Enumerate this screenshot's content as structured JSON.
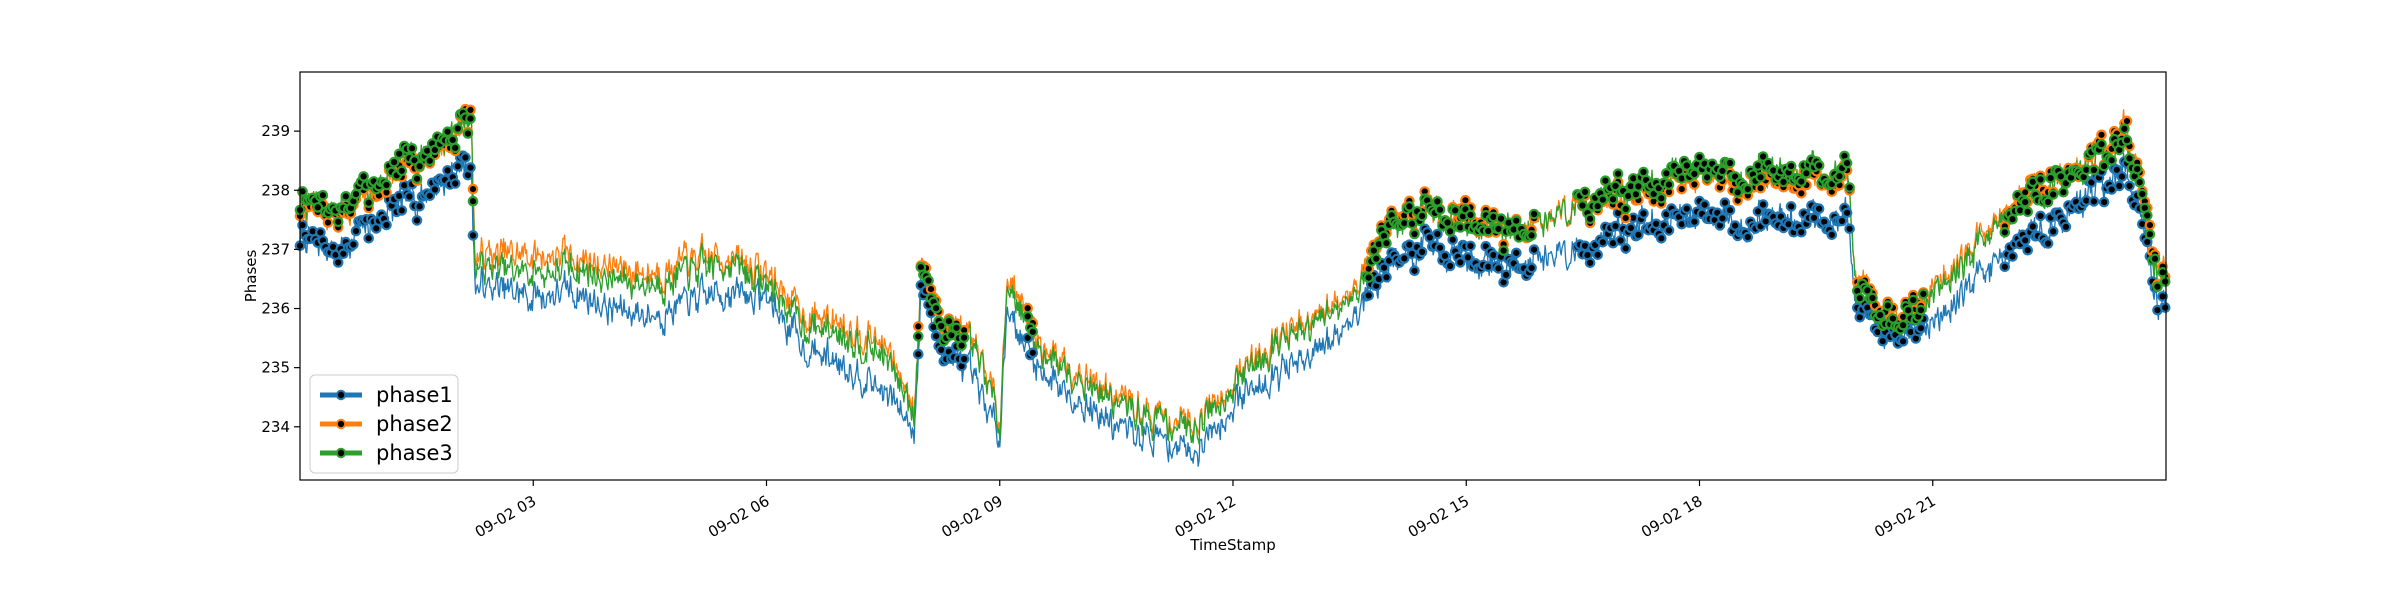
{
  "chart_data": {
    "type": "line",
    "title": "",
    "xlabel": "TimeStamp",
    "ylabel": "Phases",
    "xlim_hours": [
      0.0,
      24.0
    ],
    "ylim": [
      233.1,
      240.0
    ],
    "x_ticks": [
      {
        "hour": 3,
        "label": "09-02 03"
      },
      {
        "hour": 6,
        "label": "09-02 06"
      },
      {
        "hour": 9,
        "label": "09-02 09"
      },
      {
        "hour": 12,
        "label": "09-02 12"
      },
      {
        "hour": 15,
        "label": "09-02 15"
      },
      {
        "hour": 18,
        "label": "09-02 18"
      },
      {
        "hour": 21,
        "label": "09-02 21"
      }
    ],
    "y_ticks": [
      234,
      235,
      236,
      237,
      238,
      239
    ],
    "grid": false,
    "legend": "lower-left",
    "x_hours": [
      0.0,
      0.5,
      1.0,
      1.5,
      2.0,
      2.2,
      2.25,
      3.0,
      3.5,
      4.0,
      4.5,
      5.0,
      5.5,
      6.0,
      6.5,
      7.0,
      7.5,
      7.9,
      8.0,
      8.2,
      8.5,
      8.8,
      9.0,
      9.1,
      9.3,
      9.5,
      10.0,
      10.5,
      11.0,
      11.5,
      12.0,
      12.5,
      13.0,
      13.5,
      13.8,
      14.0,
      14.5,
      15.0,
      15.5,
      16.0,
      16.5,
      17.0,
      17.5,
      18.0,
      18.5,
      19.0,
      19.5,
      19.9,
      20.0,
      20.3,
      20.6,
      21.0,
      21.5,
      22.0,
      22.5,
      23.0,
      23.5,
      23.9,
      24.0
    ],
    "series": [
      {
        "name": "phase1",
        "color": "#1f77b4",
        "values": [
          237.2,
          237.0,
          237.5,
          237.9,
          238.3,
          238.5,
          236.4,
          236.2,
          236.3,
          236.0,
          235.9,
          236.1,
          236.3,
          236.2,
          235.3,
          235.1,
          234.6,
          234.0,
          236.5,
          235.4,
          235.1,
          234.4,
          233.9,
          236.1,
          235.4,
          235.0,
          234.5,
          234.0,
          233.8,
          233.6,
          234.4,
          234.9,
          235.1,
          235.8,
          236.4,
          236.8,
          237.0,
          236.9,
          236.7,
          236.9,
          237.0,
          237.3,
          237.5,
          237.6,
          237.4,
          237.6,
          237.5,
          237.6,
          236.0,
          235.7,
          235.5,
          235.8,
          236.4,
          237.0,
          237.4,
          237.9,
          238.4,
          236.1,
          236.1
        ]
      },
      {
        "name": "phase2",
        "color": "#ff7f0e",
        "values": [
          237.7,
          237.6,
          238.0,
          238.5,
          238.9,
          239.4,
          236.9,
          236.9,
          236.9,
          236.7,
          236.6,
          236.8,
          236.9,
          236.6,
          235.9,
          235.8,
          235.4,
          234.4,
          236.9,
          235.9,
          235.6,
          235.0,
          234.2,
          236.6,
          236.1,
          235.4,
          235.0,
          234.5,
          234.2,
          234.1,
          234.8,
          235.5,
          235.7,
          236.3,
          236.9,
          237.5,
          237.6,
          237.6,
          237.3,
          237.5,
          237.8,
          237.9,
          238.1,
          238.3,
          238.1,
          238.3,
          238.2,
          238.3,
          236.5,
          236.0,
          235.8,
          236.4,
          237.0,
          237.7,
          238.2,
          238.4,
          239.1,
          236.6,
          236.6
        ]
      },
      {
        "name": "phase3",
        "color": "#2ca02c",
        "values": [
          237.8,
          237.7,
          238.1,
          238.6,
          239.0,
          239.3,
          236.7,
          236.6,
          236.7,
          236.5,
          236.4,
          236.6,
          236.8,
          236.4,
          235.7,
          235.6,
          235.2,
          234.3,
          236.8,
          235.8,
          235.5,
          234.9,
          234.1,
          236.5,
          235.9,
          235.3,
          234.9,
          234.4,
          234.1,
          234.0,
          234.7,
          235.4,
          235.6,
          236.2,
          236.8,
          237.4,
          237.6,
          237.5,
          237.3,
          237.5,
          237.8,
          238.0,
          238.2,
          238.4,
          238.2,
          238.4,
          238.3,
          238.4,
          236.4,
          235.9,
          235.7,
          236.3,
          236.9,
          237.6,
          238.1,
          238.4,
          238.9,
          236.5,
          236.5
        ]
      }
    ],
    "marker_regions_hours": [
      [
        0.0,
        2.25
      ],
      [
        7.95,
        8.55
      ],
      [
        9.35,
        9.45
      ],
      [
        13.7,
        15.9
      ],
      [
        16.4,
        19.95
      ],
      [
        20.0,
        20.9
      ],
      [
        21.9,
        23.9
      ],
      [
        23.95,
        24.0
      ]
    ]
  }
}
